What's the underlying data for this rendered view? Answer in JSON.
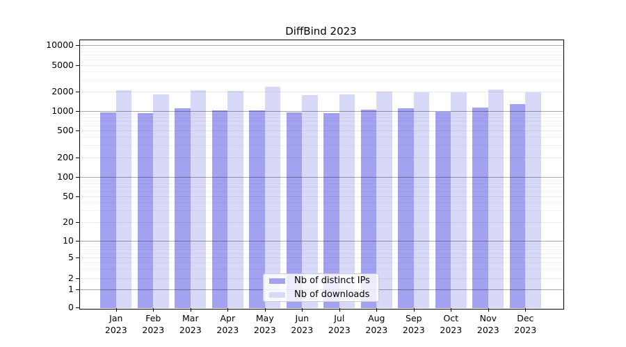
{
  "title": "DiffBind 2023",
  "chart_data": {
    "type": "bar",
    "title": "DiffBind 2023",
    "x_months": [
      "Jan",
      "Feb",
      "Mar",
      "Apr",
      "May",
      "Jun",
      "Jul",
      "Aug",
      "Sep",
      "Oct",
      "Nov",
      "Dec"
    ],
    "x_year": "2023",
    "categories": [
      "Jan 2023",
      "Feb 2023",
      "Mar 2023",
      "Apr 2023",
      "May 2023",
      "Jun 2023",
      "Jul 2023",
      "Aug 2023",
      "Sep 2023",
      "Oct 2023",
      "Nov 2023",
      "Dec 2023"
    ],
    "series": [
      {
        "name": "Nb of distinct IPs",
        "color": "#a2a2f1",
        "values": [
          950,
          920,
          1100,
          1010,
          1010,
          950,
          910,
          1030,
          1080,
          960,
          1130,
          1280
        ]
      },
      {
        "name": "Nb of downloads",
        "color": "#d8d8f8",
        "values": [
          2050,
          1780,
          2090,
          2010,
          2330,
          1750,
          1780,
          1990,
          1950,
          1930,
          2110,
          1950
        ]
      }
    ],
    "yscale": "log-like",
    "ytick_values": [
      0,
      1,
      2,
      5,
      10,
      20,
      50,
      100,
      200,
      500,
      1000,
      2000,
      5000,
      10000
    ],
    "ytick_labels": [
      "0",
      "1",
      "2",
      "5",
      "10",
      "20",
      "50",
      "100",
      "200",
      "500",
      "1000",
      "2000",
      "5000",
      "10000"
    ],
    "ylim": [
      0,
      10000
    ],
    "grid": true,
    "legend_position": "lower center"
  }
}
